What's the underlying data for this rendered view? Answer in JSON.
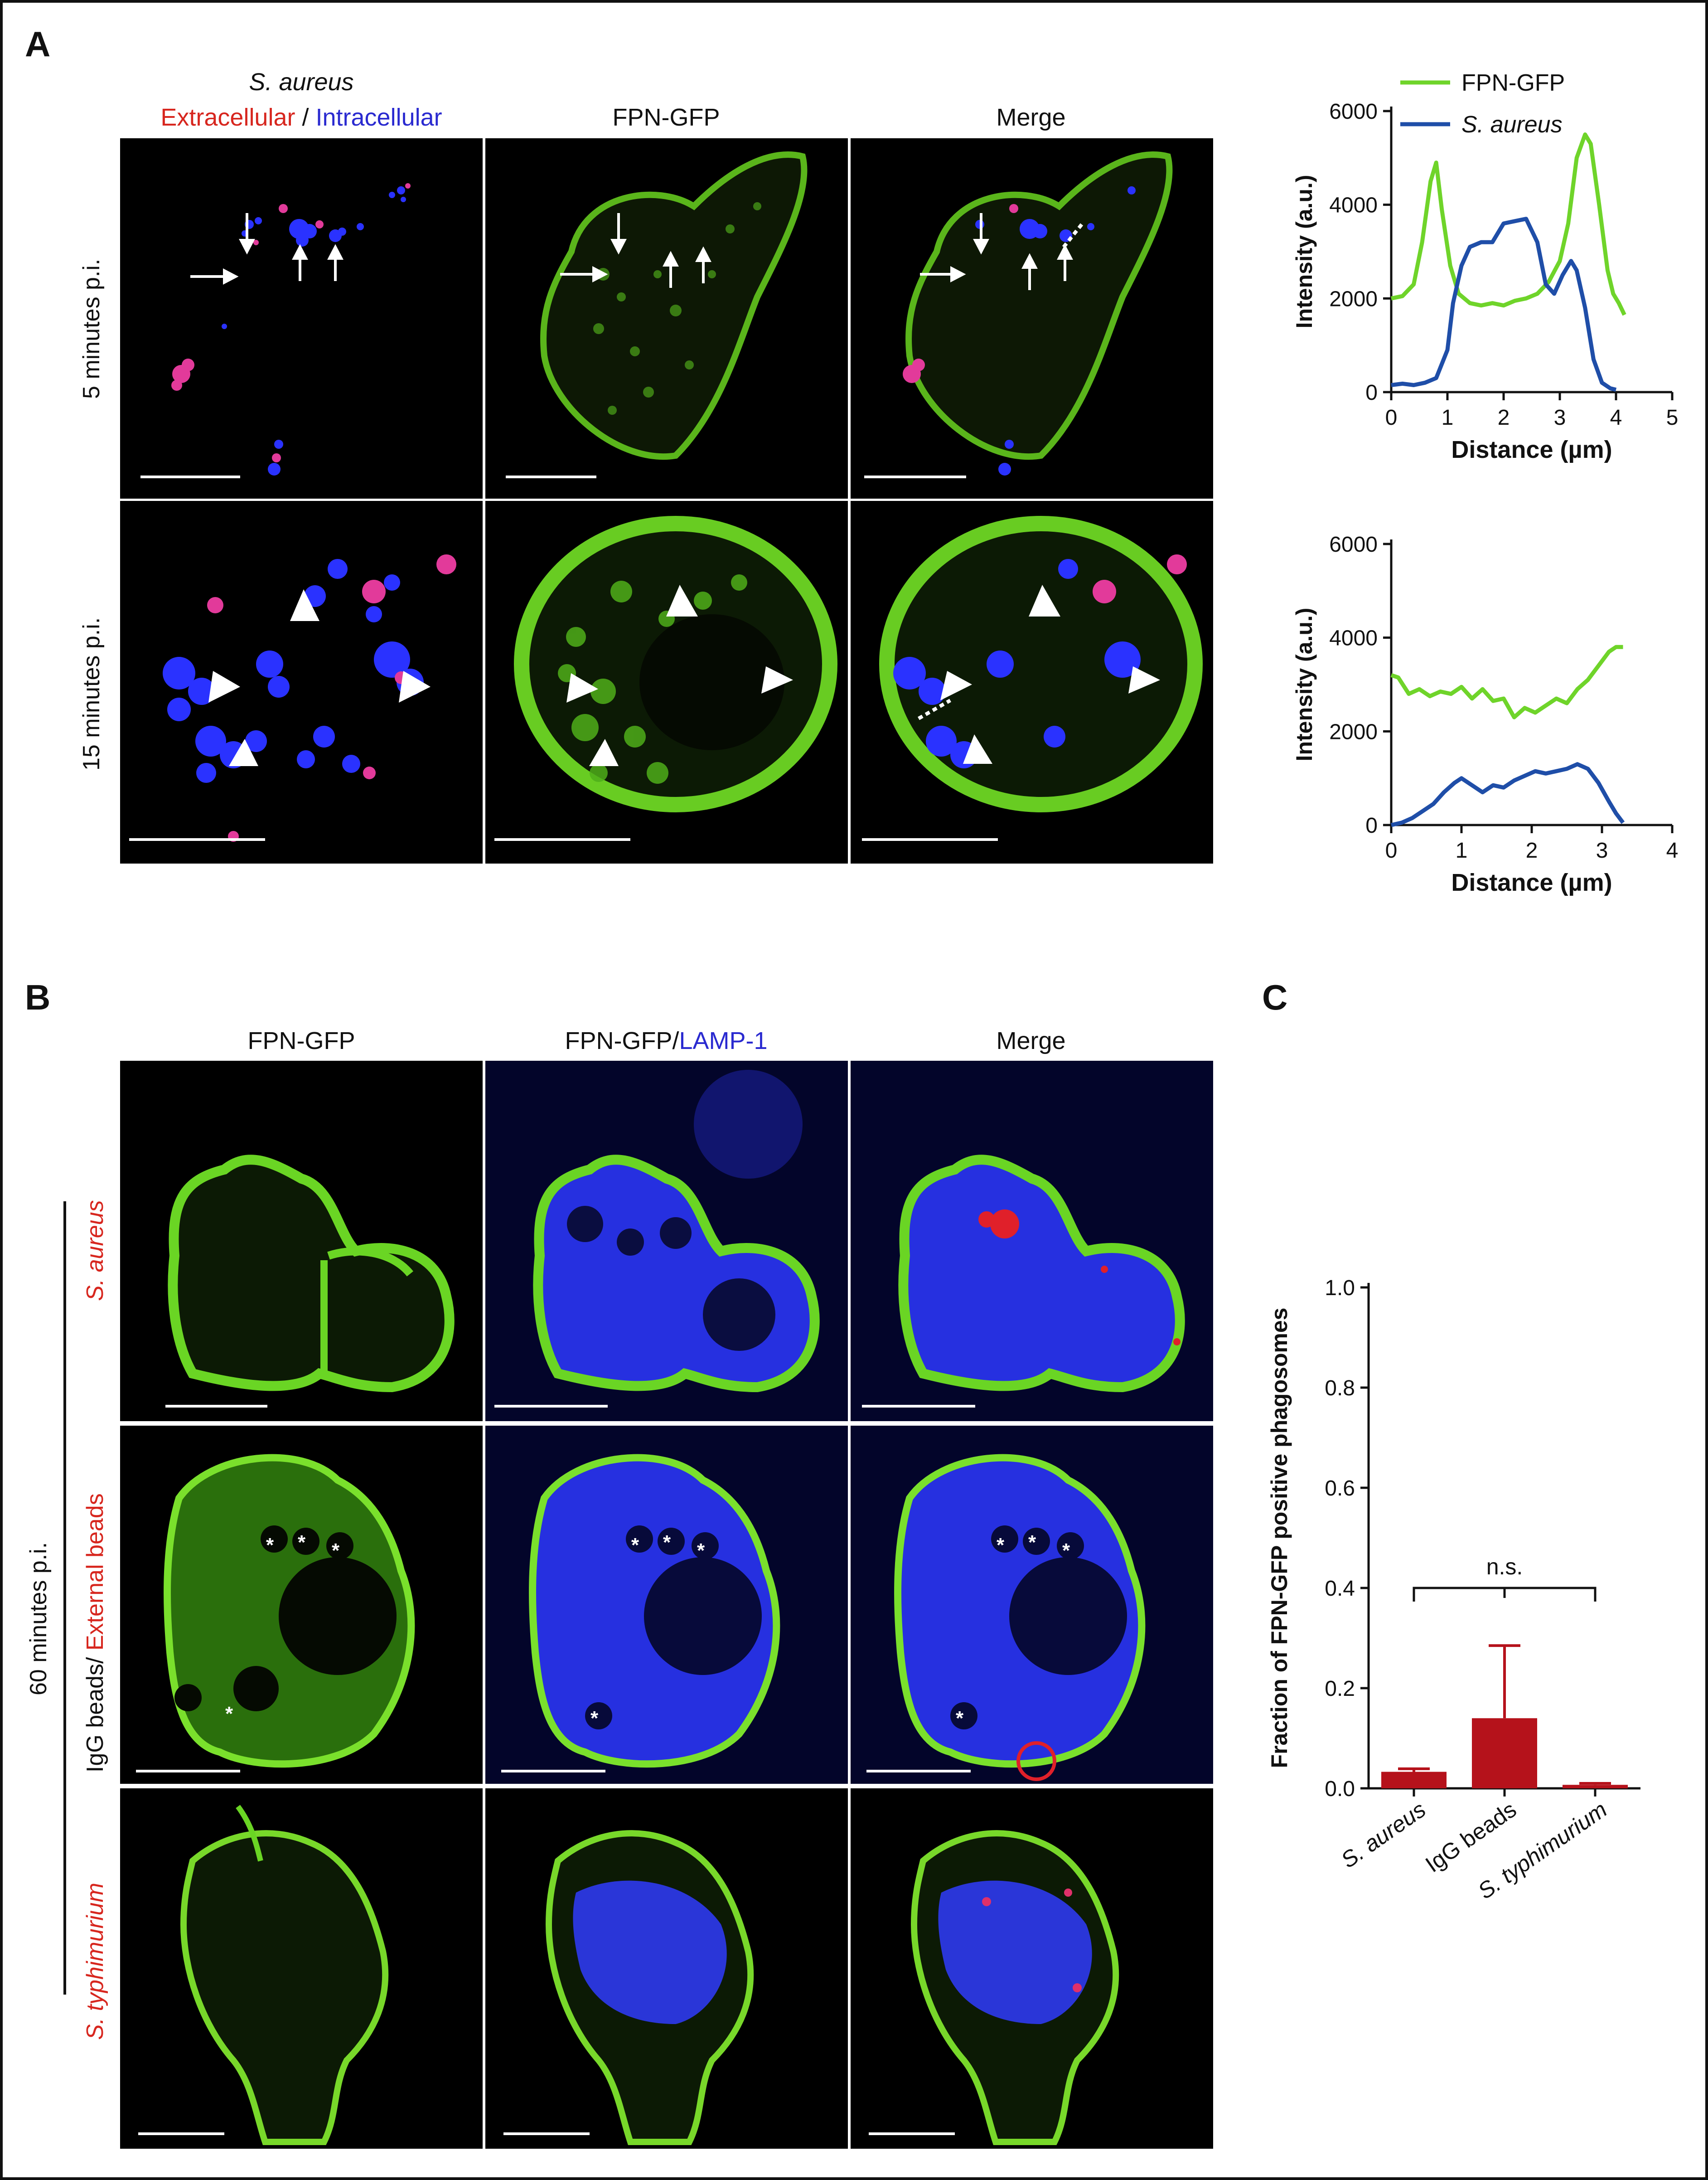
{
  "panels": {
    "a": {
      "letter": "A",
      "col1_title_top": "S. aureus",
      "col1_title_extra": "Extracellular",
      "col1_title_sep": " / ",
      "col1_title_intra": "Intracellular",
      "col2_title": "FPN-GFP",
      "col3_title": "Merge",
      "row1_label": "5 minutes p.i.",
      "row2_label": "15 minutes p.i."
    },
    "b": {
      "letter": "B",
      "col1_title": "FPN-GFP",
      "col2_title_a": "FPN-GFP/",
      "col2_title_b": "LAMP-1",
      "col3_title": "Merge",
      "group_label": "60 minutes p.i.",
      "row1_label": "S. aureus",
      "row2_label_a": "IgG beads/ ",
      "row2_label_b": "External beads",
      "row3_label": "S. typhimurium",
      "asterisk": "*"
    },
    "c": {
      "letter": "C"
    }
  },
  "colors": {
    "fpn_gfp": "#6fd42a",
    "s_aureus": "#1f4ea8",
    "bar": "#b5121b",
    "red_text": "#d7261e",
    "blue_text": "#2a2ad0"
  },
  "chart_data": [
    {
      "type": "line",
      "xlabel": "Distance (µm)",
      "ylabel": "Intensity (a.u.)",
      "xlim": [
        0,
        5
      ],
      "ylim": [
        0,
        6000
      ],
      "xticks": [
        "0",
        "1",
        "2",
        "3",
        "4",
        "5"
      ],
      "yticks": [
        "0",
        "2000",
        "4000",
        "6000"
      ],
      "legend": "top",
      "series": [
        {
          "name": "FPN-GFP",
          "x": [
            0,
            0.2,
            0.4,
            0.55,
            0.7,
            0.8,
            0.9,
            1.05,
            1.2,
            1.4,
            1.6,
            1.8,
            2.0,
            2.2,
            2.4,
            2.6,
            2.8,
            3.0,
            3.15,
            3.3,
            3.45,
            3.55,
            3.7,
            3.85,
            3.95,
            4.05,
            4.15
          ],
          "y": [
            2000,
            2050,
            2300,
            3200,
            4500,
            4900,
            3900,
            2700,
            2100,
            1900,
            1850,
            1900,
            1850,
            1950,
            2000,
            2100,
            2350,
            2800,
            3600,
            5000,
            5500,
            5300,
            4000,
            2600,
            2100,
            1900,
            1650
          ]
        },
        {
          "name": "S. aureus",
          "x": [
            0,
            0.2,
            0.4,
            0.6,
            0.8,
            1.0,
            1.1,
            1.25,
            1.4,
            1.6,
            1.8,
            2.0,
            2.2,
            2.4,
            2.6,
            2.75,
            2.9,
            3.05,
            3.2,
            3.3,
            3.45,
            3.6,
            3.75,
            3.9,
            4.0
          ],
          "y": [
            150,
            180,
            150,
            200,
            300,
            900,
            1900,
            2700,
            3100,
            3200,
            3200,
            3600,
            3650,
            3700,
            3200,
            2300,
            2100,
            2500,
            2800,
            2600,
            1800,
            700,
            200,
            80,
            50
          ]
        }
      ]
    },
    {
      "type": "line",
      "xlabel": "Distance (µm)",
      "ylabel": "Intensity (a.u.)",
      "xlim": [
        0,
        4
      ],
      "ylim": [
        0,
        6000
      ],
      "xticks": [
        "0",
        "1",
        "2",
        "3",
        "4"
      ],
      "yticks": [
        "0",
        "2000",
        "4000",
        "6000"
      ],
      "series": [
        {
          "name": "FPN-GFP",
          "x": [
            0,
            0.1,
            0.25,
            0.4,
            0.55,
            0.7,
            0.85,
            1.0,
            1.15,
            1.3,
            1.45,
            1.6,
            1.75,
            1.9,
            2.05,
            2.2,
            2.35,
            2.5,
            2.65,
            2.8,
            2.95,
            3.1,
            3.2,
            3.3
          ],
          "y": [
            3200,
            3150,
            2800,
            2900,
            2750,
            2850,
            2800,
            2950,
            2700,
            2900,
            2650,
            2700,
            2300,
            2500,
            2400,
            2550,
            2700,
            2600,
            2900,
            3100,
            3400,
            3700,
            3800,
            3800
          ]
        },
        {
          "name": "S. aureus",
          "x": [
            0,
            0.15,
            0.3,
            0.45,
            0.6,
            0.75,
            0.9,
            1.0,
            1.15,
            1.3,
            1.45,
            1.6,
            1.75,
            1.9,
            2.05,
            2.2,
            2.35,
            2.5,
            2.65,
            2.8,
            2.95,
            3.1,
            3.2,
            3.3
          ],
          "y": [
            0,
            50,
            150,
            300,
            450,
            700,
            900,
            1000,
            850,
            700,
            850,
            800,
            950,
            1050,
            1150,
            1100,
            1150,
            1200,
            1300,
            1200,
            900,
            500,
            250,
            50
          ]
        }
      ]
    },
    {
      "type": "bar",
      "categories": [
        "S. aureus",
        "IgG beads",
        "S. typhimurium"
      ],
      "values": [
        0.033,
        0.14,
        0.007
      ],
      "errors": [
        0.006,
        0.145,
        0.003
      ],
      "ylabel": "Fraction of FPN-GFP positive phagosomes",
      "ylim": [
        0,
        1.0
      ],
      "yticks": [
        "0.0",
        "0.2",
        "0.4",
        "0.6",
        "0.8",
        "1.0"
      ],
      "annotation": "n.s."
    }
  ]
}
